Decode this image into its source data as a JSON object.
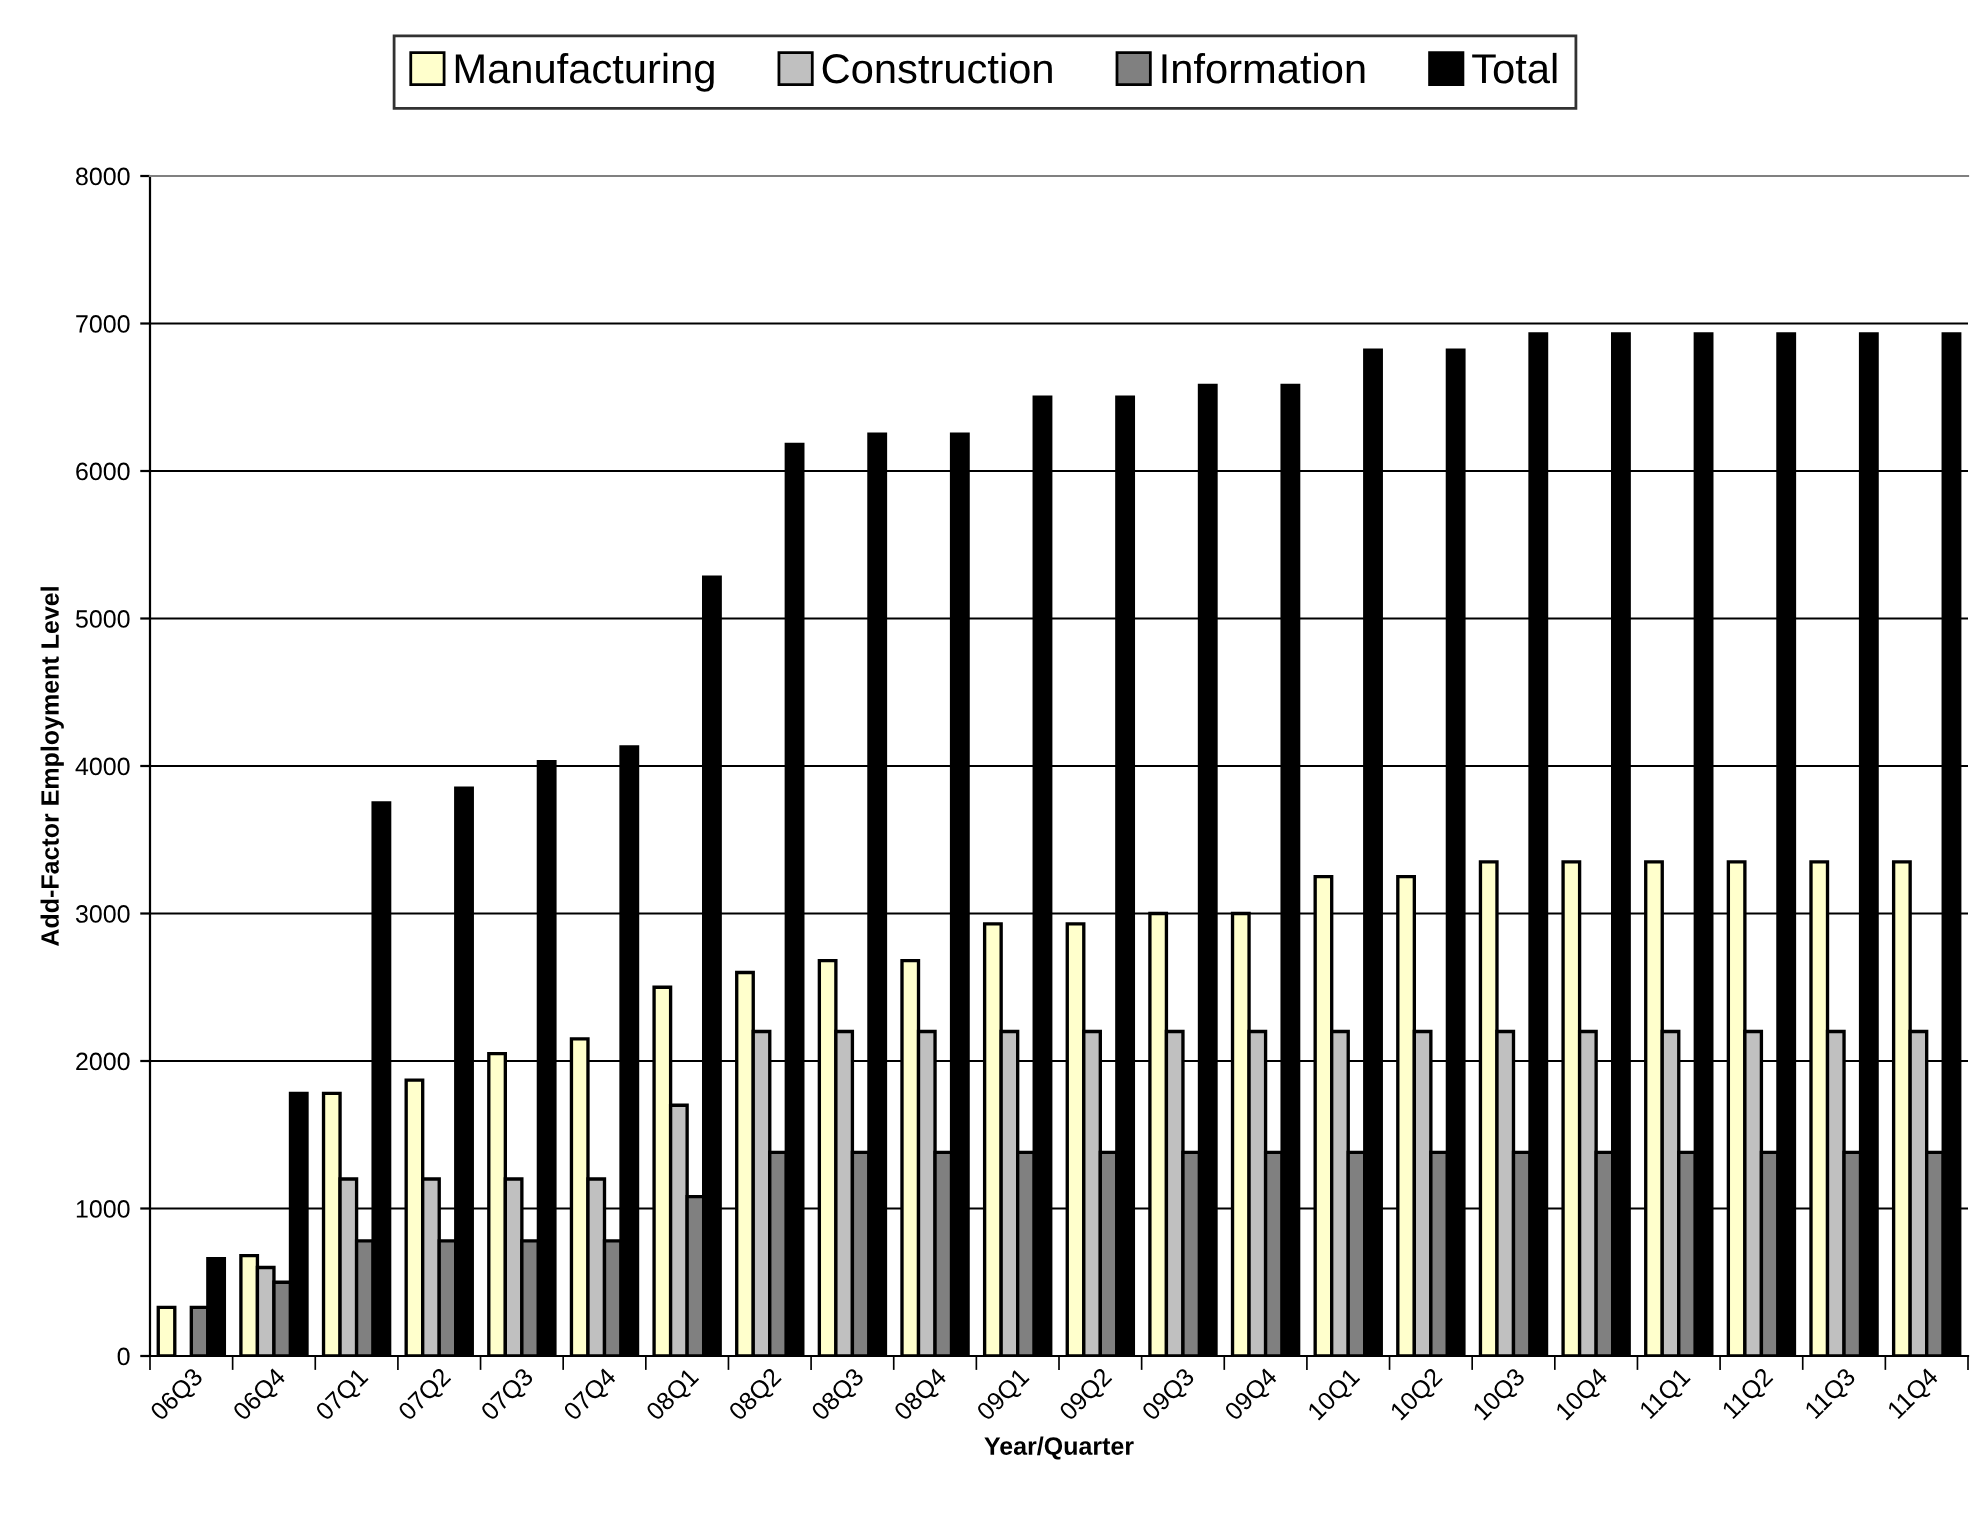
{
  "chart_data": {
    "type": "bar",
    "xlabel": "Year/Quarter",
    "ylabel": "Add-Factor Employment Level",
    "categories": [
      "06Q3",
      "06Q4",
      "07Q1",
      "07Q2",
      "07Q3",
      "07Q4",
      "08Q1",
      "08Q2",
      "08Q3",
      "08Q4",
      "09Q1",
      "09Q2",
      "09Q3",
      "09Q4",
      "10Q1",
      "10Q2",
      "10Q3",
      "10Q4",
      "11Q1",
      "11Q2",
      "11Q3",
      "11Q4"
    ],
    "series": [
      {
        "name": "Manufacturing",
        "color": "#ffffcc",
        "values": [
          330,
          680,
          1780,
          1870,
          2050,
          2150,
          2500,
          2600,
          2680,
          2680,
          2930,
          2930,
          3000,
          3000,
          3250,
          3250,
          3350,
          3350,
          3350,
          3350,
          3350,
          3350
        ]
      },
      {
        "name": "Construction",
        "color": "#c0c0c0",
        "values": [
          0,
          600,
          1200,
          1200,
          1200,
          1200,
          1700,
          2200,
          2200,
          2200,
          2200,
          2200,
          2200,
          2200,
          2200,
          2200,
          2200,
          2200,
          2200,
          2200,
          2200,
          2200
        ]
      },
      {
        "name": "Information",
        "color": "#808080",
        "values": [
          330,
          500,
          780,
          780,
          780,
          780,
          1080,
          1380,
          1380,
          1380,
          1380,
          1380,
          1380,
          1380,
          1380,
          1380,
          1380,
          1380,
          1380,
          1380,
          1380,
          1380
        ]
      },
      {
        "name": "Total",
        "color": "#000000",
        "values": [
          660,
          1780,
          3750,
          3850,
          4030,
          4130,
          5280,
          6180,
          6250,
          6250,
          6500,
          6500,
          6580,
          6580,
          6820,
          6820,
          6930,
          6930,
          6930,
          6930,
          6930,
          6930
        ]
      }
    ],
    "ylim": [
      0,
      8000
    ],
    "yticks": [
      0,
      1000,
      2000,
      3000,
      4000,
      5000,
      6000,
      7000,
      8000
    ],
    "grid": "y",
    "legend": "top"
  }
}
